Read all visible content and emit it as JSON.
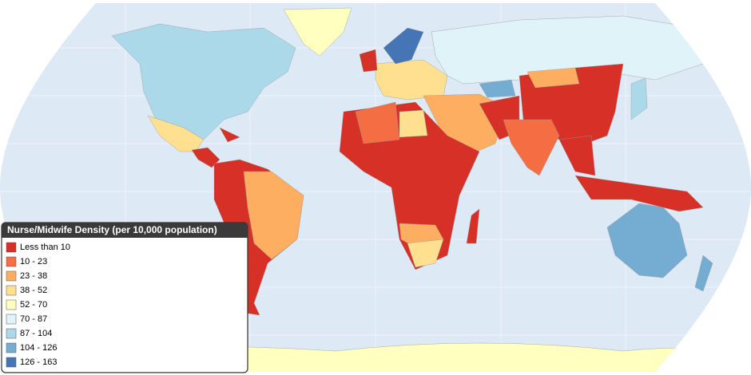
{
  "legend": {
    "title": "Nurse/Midwife Density (per 10,000 population)",
    "items": [
      {
        "label": "Less than 10",
        "color": "#d73027"
      },
      {
        "label": "10 - 23",
        "color": "#f46d43"
      },
      {
        "label": "23 - 38",
        "color": "#fdae61"
      },
      {
        "label": "38 - 52",
        "color": "#fee090"
      },
      {
        "label": "52 - 70",
        "color": "#ffffbf"
      },
      {
        "label": "70 - 87",
        "color": "#e0f3f8"
      },
      {
        "label": "87 - 104",
        "color": "#abd9e9"
      },
      {
        "label": "104 - 126",
        "color": "#74add1"
      },
      {
        "label": "126 - 163",
        "color": "#4575b4"
      }
    ]
  }
}
